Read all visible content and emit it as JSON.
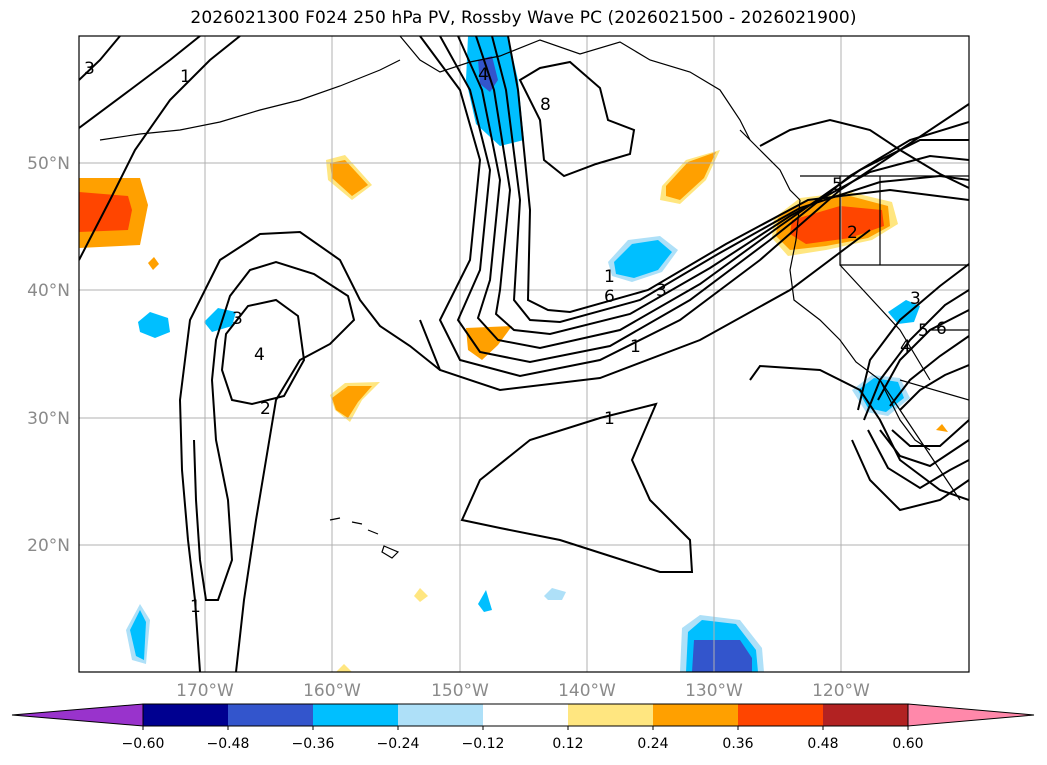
{
  "title": "2026021300 F024 250 hPa PV, Rossby Wave PC (2026021500 - 2026021900)",
  "lat_labels": [
    "50°N",
    "40°N",
    "30°N",
    "20°N"
  ],
  "lon_labels": [
    "170°W",
    "160°W",
    "150°W",
    "140°W",
    "130°W",
    "120°W"
  ],
  "colorbar": {
    "ticks": [
      "−0.60",
      "−0.48",
      "−0.36",
      "−0.24",
      "−0.12",
      "0.12",
      "0.24",
      "0.36",
      "0.48",
      "0.60"
    ],
    "colors": [
      "#9933cc",
      "#000090",
      "#3355cc",
      "#00bfff",
      "#aee0f8",
      "#ffffff",
      "#ffe680",
      "#ffa000",
      "#ff4500",
      "#b22222",
      "#ff88aa"
    ]
  },
  "contour_labels": [
    "3",
    "1",
    "4",
    "8",
    "5",
    "2",
    "1",
    "6",
    "3",
    "1",
    "3",
    "4",
    "2",
    "1",
    "1",
    "3",
    "4",
    "5",
    "6"
  ],
  "colors": {
    "contour": "#000000",
    "grid": "#b0b0b0",
    "coast": "#000000"
  }
}
